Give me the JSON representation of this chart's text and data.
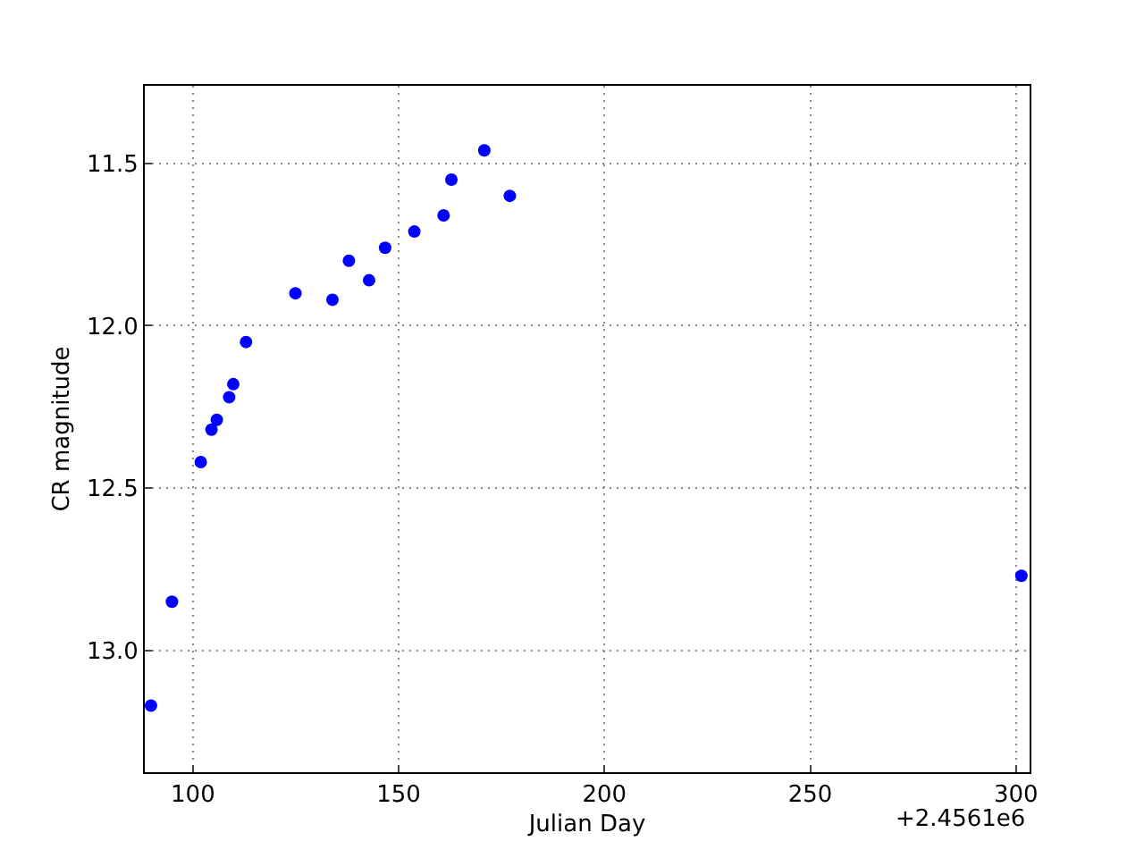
{
  "chart_data": {
    "type": "scatter",
    "xlabel": "Julian Day",
    "ylabel": "CR magnitude",
    "annotations": [
      "+2.4561e6"
    ],
    "x": [
      89.8,
      94.9,
      101.9,
      104.5,
      105.8,
      108.8,
      109.8,
      112.9,
      124.9,
      133.9,
      137.9,
      142.8,
      146.7,
      153.8,
      160.9,
      162.8,
      170.8,
      177.0,
      301.3
    ],
    "series": [
      {
        "color": "#0000ff",
        "values": [
          13.17,
          12.85,
          12.42,
          12.32,
          12.29,
          12.22,
          12.18,
          12.05,
          11.9,
          11.92,
          11.8,
          11.86,
          11.76,
          11.71,
          11.66,
          11.55,
          11.46,
          11.6,
          12.77
        ]
      }
    ],
    "xlim": [
      88.3,
      303.3
    ],
    "xticks": [
      100,
      150,
      200,
      250,
      300
    ],
    "ylim": [
      13.375,
      11.261
    ],
    "yticks": [
      {
        "value": 11.5,
        "label": "11.5"
      },
      {
        "value": 12.0,
        "label": "12.0"
      },
      {
        "value": 12.5,
        "label": "12.5"
      },
      {
        "value": 13.0,
        "label": "13.0"
      }
    ],
    "grid": true,
    "marker": "circle",
    "legend": false
  }
}
